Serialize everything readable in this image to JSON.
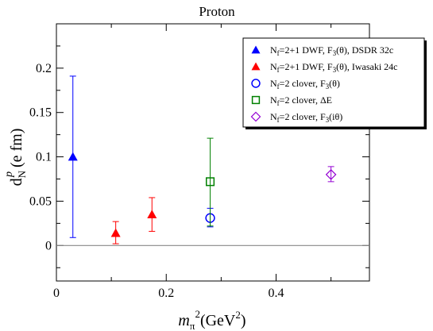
{
  "chart_data": {
    "type": "scatter",
    "title": "Proton",
    "xlabel_main": "m",
    "xlabel_sub": "π",
    "xlabel_sup": "2",
    "xlabel_rest": "(GeV",
    "xlabel_rest_sup": "2",
    "xlabel_close": ")",
    "ylabel_main": "d",
    "ylabel_sub": "N",
    "ylabel_sup": "p",
    "ylabel_rest": " (e fm)",
    "xlim": [
      0,
      0.57
    ],
    "ylim": [
      -0.04,
      0.25
    ],
    "x_ticks": [
      {
        "value": 0,
        "label": "0"
      },
      {
        "value": 0.2,
        "label": "0.2"
      },
      {
        "value": 0.4,
        "label": "0.4"
      }
    ],
    "y_ticks": [
      {
        "value": 0,
        "label": "0"
      },
      {
        "value": 0.05,
        "label": "0.05"
      },
      {
        "value": 0.1,
        "label": "0.1"
      },
      {
        "value": 0.15,
        "label": "0.15"
      },
      {
        "value": 0.2,
        "label": "0.2"
      }
    ],
    "zero_line": true,
    "grid": false,
    "legend_placement": "top-right",
    "series": [
      {
        "legend": {
          "pre": "N",
          "sub": "f",
          "post": "=2+1 DWF, F",
          "sub2": "3",
          "post2": "(θ), DSDR 32c"
        },
        "marker": "triangle-filled",
        "color": "#0000ff",
        "points": [
          {
            "x": 0.03,
            "y": 0.1,
            "err_low": 0.009,
            "err_high": 0.191
          }
        ]
      },
      {
        "legend": {
          "pre": "N",
          "sub": "f",
          "post": "=2+1 DWF, F",
          "sub2": "3",
          "post2": "(θ), Iwasaki 24c"
        },
        "marker": "triangle-filled",
        "color": "#ff0000",
        "points": [
          {
            "x": 0.108,
            "y": 0.014,
            "err_low": 0.002,
            "err_high": 0.027
          },
          {
            "x": 0.174,
            "y": 0.035,
            "err_low": 0.016,
            "err_high": 0.054
          }
        ]
      },
      {
        "legend": {
          "pre": "N",
          "sub": "f",
          "post": "=2 clover, F",
          "sub2": "3",
          "post2": "(θ)"
        },
        "marker": "circle-open",
        "color": "#0000ff",
        "points": [
          {
            "x": 0.28,
            "y": 0.031,
            "err_low": 0.021,
            "err_high": 0.042
          }
        ]
      },
      {
        "legend": {
          "pre": "N",
          "sub": "f",
          "post": "=2 clover, ΔE",
          "sub2": "",
          "post2": ""
        },
        "marker": "square-open",
        "color": "#008000",
        "points": [
          {
            "x": 0.28,
            "y": 0.072,
            "err_low": 0.022,
            "err_high": 0.121
          }
        ]
      },
      {
        "legend": {
          "pre": "N",
          "sub": "f",
          "post": "=2 clover, F",
          "sub2": "3",
          "post2": "(iθ)"
        },
        "marker": "diamond-open",
        "color": "#9400d3",
        "points": [
          {
            "x": 0.5,
            "y": 0.08,
            "err_low": 0.072,
            "err_high": 0.089
          }
        ]
      }
    ]
  }
}
